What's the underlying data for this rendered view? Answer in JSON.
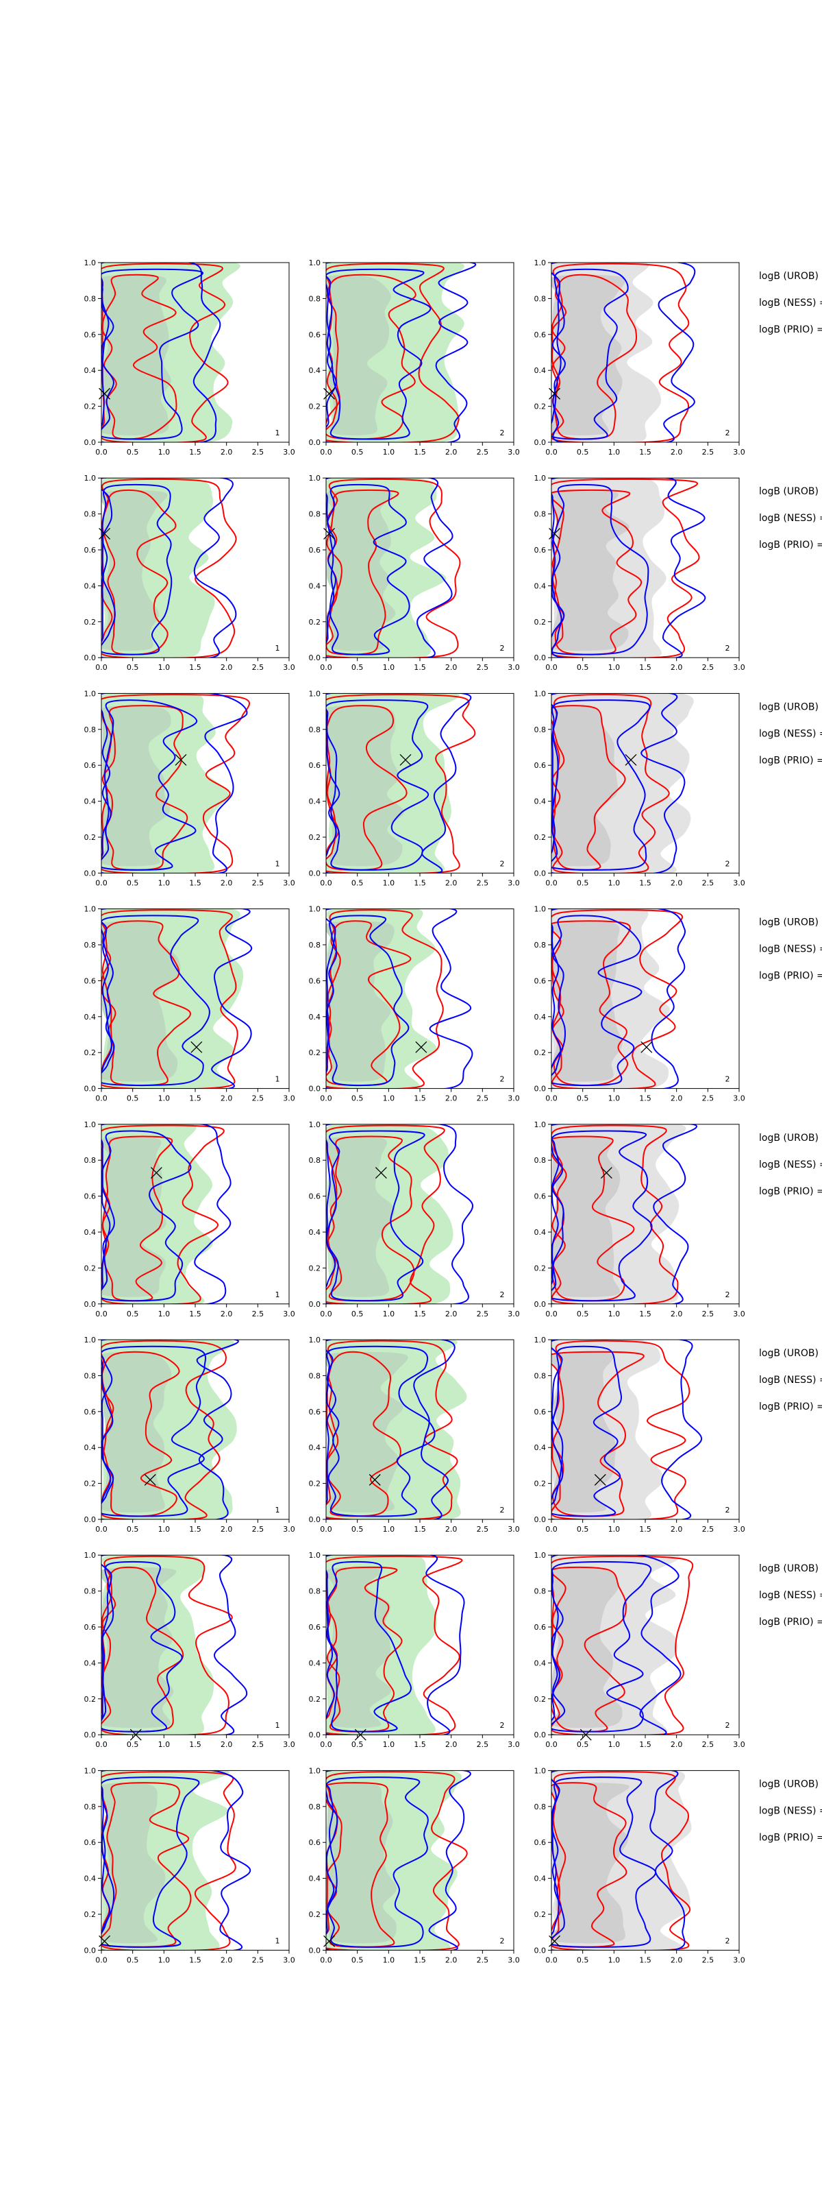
{
  "chart_data": {
    "type": "contour-grid",
    "rows": 8,
    "columns": 3,
    "xlim": [
      0,
      3
    ],
    "ylim": [
      0,
      1
    ],
    "x_ticks": [
      "0.0",
      "0.5",
      "1.0",
      "1.5",
      "2.0",
      "2.5",
      "3.0"
    ],
    "y_ticks": [
      "0.0",
      "0.2",
      "0.4",
      "0.6",
      "0.8",
      "1.0"
    ],
    "panel_labels": [
      "1",
      "2",
      "2"
    ],
    "fill_colors": [
      "#c6edc6",
      "#c6edc6",
      "#e3e3e3"
    ],
    "inner_fill_colors": [
      "#bcd9c0",
      "#bcd9c0",
      "#cfcfcf"
    ],
    "contour_colors": {
      "series_a": "#ff0000",
      "series_b": "#0000ff"
    },
    "marker": "X",
    "legend_text": [
      "logB (UROB) =",
      "logB (NESS) =",
      "logB (PRIO) ="
    ],
    "markers_xy": [
      [
        0.05,
        0.27
      ],
      [
        0.05,
        0.69
      ],
      [
        1.27,
        0.63
      ],
      [
        1.52,
        0.23
      ],
      [
        0.88,
        0.73
      ],
      [
        0.78,
        0.22
      ],
      [
        0.55,
        0.0
      ],
      [
        0.05,
        0.05
      ]
    ]
  }
}
